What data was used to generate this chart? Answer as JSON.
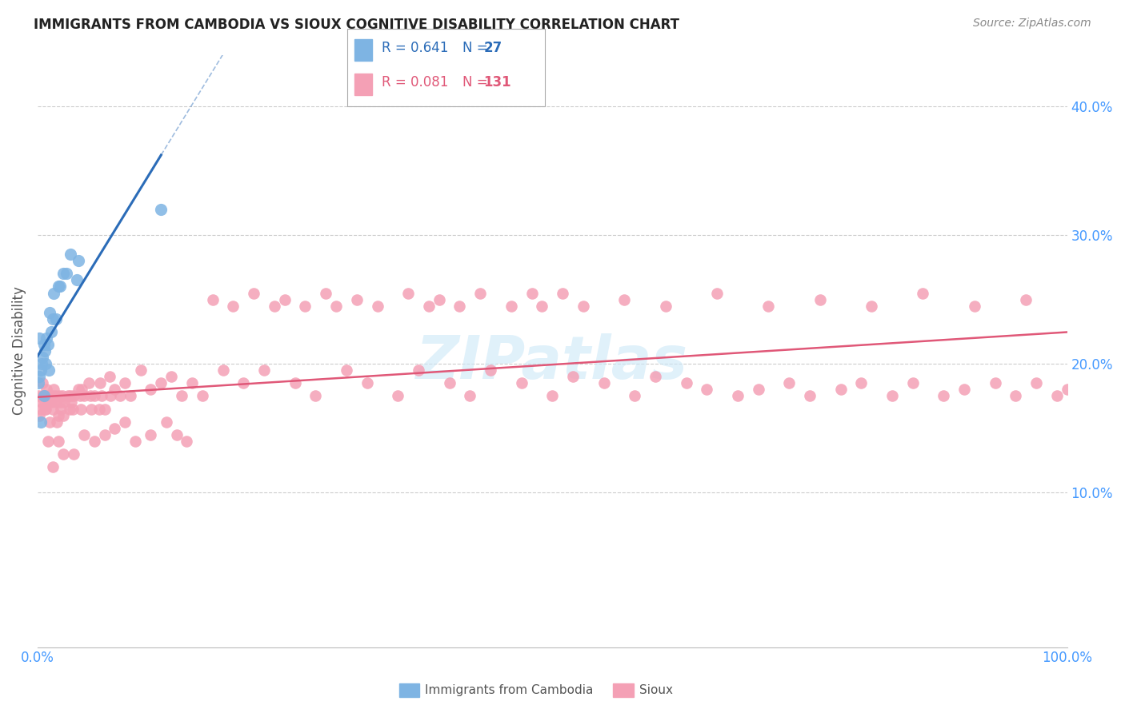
{
  "title": "IMMIGRANTS FROM CAMBODIA VS SIOUX COGNITIVE DISABILITY CORRELATION CHART",
  "source": "Source: ZipAtlas.com",
  "ylabel": "Cognitive Disability",
  "yticks": [
    0.1,
    0.2,
    0.3,
    0.4
  ],
  "ytick_labels": [
    "10.0%",
    "20.0%",
    "30.0%",
    "40.0%"
  ],
  "xlim": [
    0.0,
    1.0
  ],
  "ylim": [
    -0.02,
    0.44
  ],
  "color_blue": "#7EB4E3",
  "color_pink": "#F4A0B5",
  "color_line_blue": "#2B6CB8",
  "color_line_pink": "#E05878",
  "color_title": "#222222",
  "color_source": "#888888",
  "color_grid": "#CCCCCC",
  "color_legend_text_blue": "#2B6CB8",
  "color_legend_text_pink": "#E05878",
  "color_tick_labels": "#4499FF",
  "cam_x": [
    0.001,
    0.002,
    0.002,
    0.003,
    0.003,
    0.004,
    0.005,
    0.006,
    0.006,
    0.007,
    0.008,
    0.009,
    0.01,
    0.011,
    0.012,
    0.013,
    0.015,
    0.016,
    0.018,
    0.02,
    0.022,
    0.025,
    0.028,
    0.032,
    0.038,
    0.04,
    0.12
  ],
  "cam_y": [
    0.185,
    0.19,
    0.22,
    0.195,
    0.155,
    0.2,
    0.205,
    0.215,
    0.175,
    0.21,
    0.2,
    0.22,
    0.215,
    0.195,
    0.24,
    0.225,
    0.235,
    0.255,
    0.235,
    0.26,
    0.26,
    0.27,
    0.27,
    0.285,
    0.265,
    0.28,
    0.32
  ],
  "sioux_x": [
    0.001,
    0.002,
    0.003,
    0.004,
    0.005,
    0.005,
    0.006,
    0.007,
    0.007,
    0.008,
    0.008,
    0.009,
    0.01,
    0.011,
    0.012,
    0.013,
    0.014,
    0.015,
    0.016,
    0.017,
    0.018,
    0.019,
    0.02,
    0.021,
    0.022,
    0.023,
    0.024,
    0.025,
    0.026,
    0.03,
    0.031,
    0.032,
    0.033,
    0.034,
    0.035,
    0.04,
    0.041,
    0.042,
    0.043,
    0.045,
    0.05,
    0.051,
    0.052,
    0.055,
    0.06,
    0.061,
    0.062,
    0.065,
    0.07,
    0.071,
    0.075,
    0.08,
    0.085,
    0.09,
    0.1,
    0.11,
    0.12,
    0.13,
    0.14,
    0.15,
    0.16,
    0.18,
    0.2,
    0.22,
    0.25,
    0.27,
    0.3,
    0.32,
    0.35,
    0.37,
    0.4,
    0.42,
    0.44,
    0.47,
    0.5,
    0.52,
    0.55,
    0.58,
    0.6,
    0.63,
    0.65,
    0.68,
    0.7,
    0.73,
    0.75,
    0.78,
    0.8,
    0.83,
    0.85,
    0.88,
    0.9,
    0.93,
    0.95,
    0.97,
    0.99,
    1.0,
    0.01,
    0.015,
    0.02,
    0.025,
    0.035,
    0.045,
    0.055,
    0.065,
    0.075,
    0.085,
    0.095,
    0.11,
    0.125,
    0.135,
    0.145,
    0.17,
    0.19,
    0.21,
    0.23,
    0.24,
    0.26,
    0.28,
    0.29,
    0.31,
    0.33,
    0.36,
    0.38,
    0.39,
    0.41,
    0.43,
    0.46,
    0.48,
    0.49,
    0.51,
    0.53,
    0.57,
    0.61,
    0.66,
    0.71,
    0.76,
    0.81,
    0.86,
    0.91,
    0.96
  ],
  "sioux_y": [
    0.175,
    0.16,
    0.165,
    0.17,
    0.175,
    0.185,
    0.175,
    0.165,
    0.17,
    0.175,
    0.165,
    0.18,
    0.17,
    0.175,
    0.155,
    0.17,
    0.175,
    0.165,
    0.18,
    0.175,
    0.17,
    0.155,
    0.16,
    0.175,
    0.17,
    0.165,
    0.175,
    0.16,
    0.17,
    0.175,
    0.165,
    0.175,
    0.17,
    0.165,
    0.175,
    0.18,
    0.175,
    0.165,
    0.18,
    0.175,
    0.185,
    0.175,
    0.165,
    0.175,
    0.165,
    0.185,
    0.175,
    0.165,
    0.19,
    0.175,
    0.18,
    0.175,
    0.185,
    0.175,
    0.195,
    0.18,
    0.185,
    0.19,
    0.175,
    0.185,
    0.175,
    0.195,
    0.185,
    0.195,
    0.185,
    0.175,
    0.195,
    0.185,
    0.175,
    0.195,
    0.185,
    0.175,
    0.195,
    0.185,
    0.175,
    0.19,
    0.185,
    0.175,
    0.19,
    0.185,
    0.18,
    0.175,
    0.18,
    0.185,
    0.175,
    0.18,
    0.185,
    0.175,
    0.185,
    0.175,
    0.18,
    0.185,
    0.175,
    0.185,
    0.175,
    0.18,
    0.14,
    0.12,
    0.14,
    0.13,
    0.13,
    0.145,
    0.14,
    0.145,
    0.15,
    0.155,
    0.14,
    0.145,
    0.155,
    0.145,
    0.14,
    0.25,
    0.245,
    0.255,
    0.245,
    0.25,
    0.245,
    0.255,
    0.245,
    0.25,
    0.245,
    0.255,
    0.245,
    0.25,
    0.245,
    0.255,
    0.245,
    0.255,
    0.245,
    0.255,
    0.245,
    0.25,
    0.245,
    0.255,
    0.245,
    0.25,
    0.245,
    0.255,
    0.245,
    0.25
  ]
}
